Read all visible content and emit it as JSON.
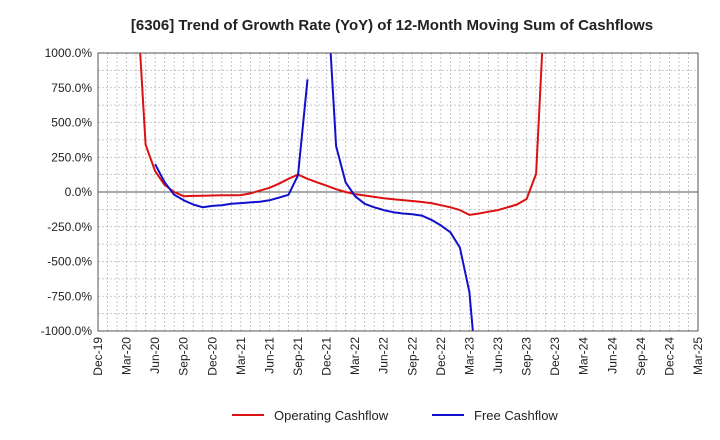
{
  "chart_data": {
    "type": "line",
    "title": "[6306]  Trend of Growth Rate (YoY) of 12-Month Moving Sum of Cashflows",
    "xlabel": "",
    "ylabel": "",
    "ylim": [
      -1000,
      1000
    ],
    "y_ticks": [
      "1000.0%",
      "750.0%",
      "500.0%",
      "250.0%",
      "0.0%",
      "-250.0%",
      "-500.0%",
      "-750.0%",
      "-1000.0%"
    ],
    "y_tick_values": [
      1000,
      750,
      500,
      250,
      0,
      -250,
      -500,
      -750,
      -1000
    ],
    "x_ticks": [
      "Dec-19",
      "Mar-20",
      "Jun-20",
      "Sep-20",
      "Dec-20",
      "Mar-21",
      "Jun-21",
      "Sep-21",
      "Dec-21",
      "Mar-22",
      "Jun-22",
      "Sep-22",
      "Dec-22",
      "Mar-23",
      "Jun-23",
      "Sep-23",
      "Dec-23",
      "Mar-24",
      "Jun-24",
      "Sep-24",
      "Dec-24",
      "Mar-25"
    ],
    "grid": true,
    "legend_position": "bottom",
    "series": [
      {
        "name": "Operating Cashflow",
        "color": "#dd1111",
        "points": [
          [
            "2020-04",
            1500
          ],
          [
            "2020-05",
            340
          ],
          [
            "2020-06",
            150
          ],
          [
            "2020-07",
            50
          ],
          [
            "2020-08",
            0
          ],
          [
            "2020-09",
            -30
          ],
          [
            "2020-10",
            -28
          ],
          [
            "2020-11",
            -27
          ],
          [
            "2020-12",
            -25
          ],
          [
            "2021-01",
            -24
          ],
          [
            "2021-02",
            -23
          ],
          [
            "2021-03",
            -22
          ],
          [
            "2021-04",
            -10
          ],
          [
            "2021-05",
            10
          ],
          [
            "2021-06",
            30
          ],
          [
            "2021-07",
            60
          ],
          [
            "2021-08",
            95
          ],
          [
            "2021-09",
            125
          ],
          [
            "2021-10",
            95
          ],
          [
            "2021-11",
            70
          ],
          [
            "2021-12",
            45
          ],
          [
            "2022-01",
            20
          ],
          [
            "2022-02",
            0
          ],
          [
            "2022-03",
            -15
          ],
          [
            "2022-04",
            -25
          ],
          [
            "2022-05",
            -35
          ],
          [
            "2022-06",
            -45
          ],
          [
            "2022-07",
            -52
          ],
          [
            "2022-08",
            -58
          ],
          [
            "2022-09",
            -65
          ],
          [
            "2022-10",
            -72
          ],
          [
            "2022-11",
            -80
          ],
          [
            "2022-12",
            -95
          ],
          [
            "2023-01",
            -110
          ],
          [
            "2023-02",
            -130
          ],
          [
            "2023-03",
            -165
          ],
          [
            "2023-04",
            -155
          ],
          [
            "2023-05",
            -142
          ],
          [
            "2023-06",
            -130
          ],
          [
            "2023-07",
            -110
          ],
          [
            "2023-08",
            -90
          ],
          [
            "2023-09",
            -50
          ],
          [
            "2023-10",
            130
          ],
          [
            "2023-11",
            1500
          ]
        ]
      },
      {
        "name": "Free Cashflow",
        "color": "#1111cc",
        "segments": [
          [
            [
              "2020-06",
              200
            ],
            [
              "2020-07",
              70
            ],
            [
              "2020-08",
              -20
            ],
            [
              "2020-09",
              -60
            ],
            [
              "2020-10",
              -90
            ],
            [
              "2020-11",
              -110
            ],
            [
              "2020-12",
              -100
            ],
            [
              "2021-01",
              -95
            ],
            [
              "2021-02",
              -85
            ],
            [
              "2021-03",
              -80
            ],
            [
              "2021-04",
              -75
            ],
            [
              "2021-05",
              -70
            ],
            [
              "2021-06",
              -60
            ],
            [
              "2021-07",
              -40
            ],
            [
              "2021-08",
              -20
            ],
            [
              "2021-09",
              120
            ],
            [
              "2021-10",
              810
            ]
          ],
          [
            [
              "2021-12",
              1500
            ],
            [
              "2022-01",
              330
            ],
            [
              "2022-02",
              70
            ],
            [
              "2022-03",
              -30
            ],
            [
              "2022-04",
              -85
            ],
            [
              "2022-05",
              -110
            ],
            [
              "2022-06",
              -130
            ],
            [
              "2022-07",
              -145
            ],
            [
              "2022-08",
              -155
            ],
            [
              "2022-09",
              -160
            ],
            [
              "2022-10",
              -170
            ],
            [
              "2022-11",
              -200
            ],
            [
              "2022-12",
              -240
            ],
            [
              "2023-01",
              -290
            ],
            [
              "2023-02",
              -400
            ],
            [
              "2023-03",
              -720
            ],
            [
              "2023-04",
              -1500
            ]
          ]
        ]
      }
    ]
  }
}
